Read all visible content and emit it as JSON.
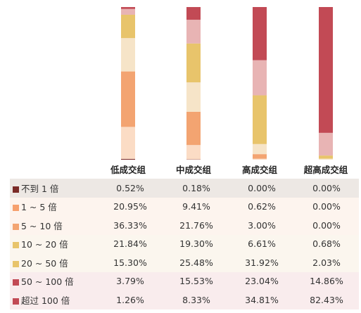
{
  "chart_data": {
    "type": "bar",
    "stacked": true,
    "normalized": true,
    "ylim": [
      0,
      100
    ],
    "categories": [
      "低成交组",
      "中成交组",
      "高成交组",
      "超高成交组"
    ],
    "series": [
      {
        "name": "不到 1 倍",
        "color": "#7b2b27",
        "values": [
          "0.52%",
          "0.18%",
          "0.00%",
          "0.00%"
        ]
      },
      {
        "name": "1 ~ 5 倍",
        "color": "#fbdcc5",
        "values": [
          "20.95%",
          "9.41%",
          "0.62%",
          "0.00%"
        ]
      },
      {
        "name": "5 ~ 10 倍",
        "color": "#f3a471",
        "values": [
          "36.33%",
          "21.76%",
          "3.00%",
          "0.00%"
        ]
      },
      {
        "name": "10 ~ 20 倍",
        "color": "#f6e4c8",
        "values": [
          "21.84%",
          "19.30%",
          "6.61%",
          "0.68%"
        ]
      },
      {
        "name": "20 ~ 50 倍",
        "color": "#e8c46b",
        "values": [
          "15.30%",
          "25.48%",
          "31.92%",
          "2.03%"
        ]
      },
      {
        "name": "50 ~ 100 倍",
        "color": "#e8b4b4",
        "values": [
          "3.79%",
          "15.53%",
          "23.04%",
          "14.86%"
        ]
      },
      {
        "name": "超过 100 倍",
        "color": "#c24a55",
        "values": [
          "1.26%",
          "8.33%",
          "34.81%",
          "82.43%"
        ]
      }
    ],
    "legend_swatch_colors": [
      "#7b2b27",
      "#f6a06e",
      "#f3a471",
      "#e8c46b",
      "#e8c46b",
      "#c24a55",
      "#c24a55"
    ],
    "row_backgrounds": [
      "#ede8e4",
      "#fdf4ee",
      "#fdf4ee",
      "#fbf6ee",
      "#fbf6ee",
      "#f9eced",
      "#f9eced"
    ]
  }
}
